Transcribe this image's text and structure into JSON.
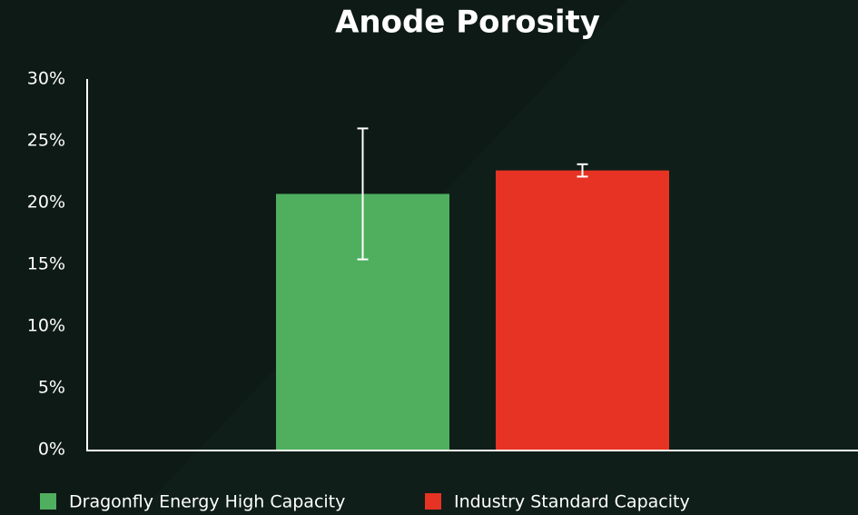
{
  "chart_data": {
    "type": "bar",
    "title": "Anode Porosity",
    "categories": [
      null
    ],
    "series": [
      {
        "name": "Dragonfly Energy High Capacity",
        "color": "#4faf5f",
        "values": [
          20.7
        ],
        "errors": [
          5.3
        ]
      },
      {
        "name": "Industry Standard Capacity",
        "color": "#e63323",
        "values": [
          22.6
        ],
        "errors": [
          0.5
        ]
      }
    ],
    "ylim": [
      0,
      30
    ],
    "yticks": [
      {
        "value": 0,
        "label": "0%"
      },
      {
        "value": 5,
        "label": "5%"
      },
      {
        "value": 10,
        "label": "10%"
      },
      {
        "value": 15,
        "label": "15%"
      },
      {
        "value": 20,
        "label": "20%"
      },
      {
        "value": 25,
        "label": "25%"
      },
      {
        "value": 30,
        "label": "30%"
      }
    ],
    "grid": false,
    "legend": "bottom"
  }
}
